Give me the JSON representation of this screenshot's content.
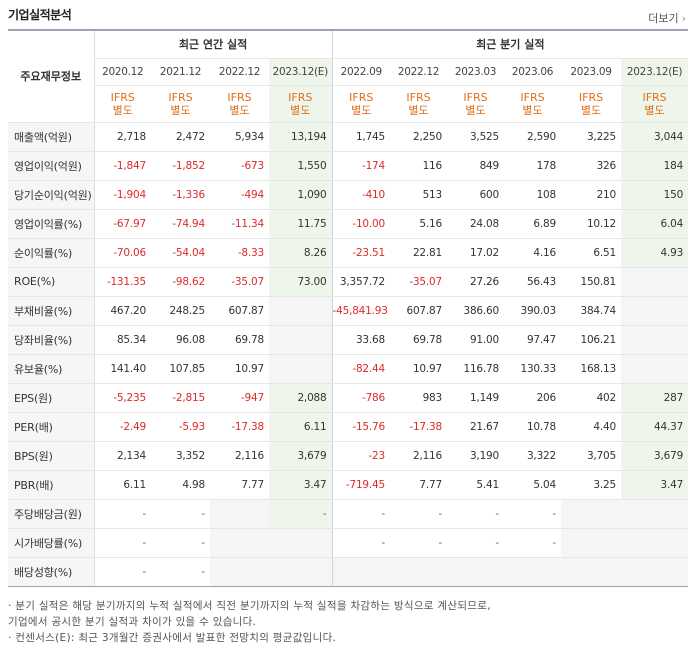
{
  "title": "기업실적분석",
  "more_label": "더보기",
  "header": {
    "label_col": "주요재무정보",
    "annual_group": "최근 연간 실적",
    "quarter_group": "최근 분기 실적",
    "annual_periods": [
      "2020.12",
      "2021.12",
      "2022.12",
      "2023.12(E)"
    ],
    "quarter_periods": [
      "2022.09",
      "2022.12",
      "2023.03",
      "2023.06",
      "2023.09",
      "2023.12(E)"
    ],
    "ifrs_line1": "IFRS",
    "ifrs_line2": "별도"
  },
  "rows": [
    {
      "label": "매출액(억원)",
      "values": [
        "2,718",
        "2,472",
        "5,934",
        "13,194",
        "1,745",
        "2,250",
        "3,525",
        "2,590",
        "3,225",
        "3,044"
      ]
    },
    {
      "label": "영업이익(억원)",
      "values": [
        "-1,847",
        "-1,852",
        "-673",
        "1,550",
        "-174",
        "116",
        "849",
        "178",
        "326",
        "184"
      ]
    },
    {
      "label": "당기순이익(억원)",
      "values": [
        "-1,904",
        "-1,336",
        "-494",
        "1,090",
        "-410",
        "513",
        "600",
        "108",
        "210",
        "150"
      ]
    },
    {
      "label": "영업이익률(%)",
      "values": [
        "-67.97",
        "-74.94",
        "-11.34",
        "11.75",
        "-10.00",
        "5.16",
        "24.08",
        "6.89",
        "10.12",
        "6.04"
      ]
    },
    {
      "label": "순이익률(%)",
      "values": [
        "-70.06",
        "-54.04",
        "-8.33",
        "8.26",
        "-23.51",
        "22.81",
        "17.02",
        "4.16",
        "6.51",
        "4.93"
      ]
    },
    {
      "label": "ROE(%)",
      "values": [
        "-131.35",
        "-98.62",
        "-35.07",
        "73.00",
        "3,357.72",
        "-35.07",
        "27.26",
        "56.43",
        "150.81",
        ""
      ]
    },
    {
      "label": "부채비율(%)",
      "values": [
        "467.20",
        "248.25",
        "607.87",
        "",
        "-45,841.93",
        "607.87",
        "386.60",
        "390.03",
        "384.74",
        ""
      ]
    },
    {
      "label": "당좌비율(%)",
      "values": [
        "85.34",
        "96.08",
        "69.78",
        "",
        "33.68",
        "69.78",
        "91.00",
        "97.47",
        "106.21",
        ""
      ]
    },
    {
      "label": "유보율(%)",
      "values": [
        "141.40",
        "107.85",
        "10.97",
        "",
        "-82.44",
        "10.97",
        "116.78",
        "130.33",
        "168.13",
        ""
      ]
    },
    {
      "label": "EPS(원)",
      "values": [
        "-5,235",
        "-2,815",
        "-947",
        "2,088",
        "-786",
        "983",
        "1,149",
        "206",
        "402",
        "287"
      ]
    },
    {
      "label": "PER(배)",
      "values": [
        "-2.49",
        "-5.93",
        "-17.38",
        "6.11",
        "-15.76",
        "-17.38",
        "21.67",
        "10.78",
        "4.40",
        "44.37"
      ]
    },
    {
      "label": "BPS(원)",
      "values": [
        "2,134",
        "3,352",
        "2,116",
        "3,679",
        "-23",
        "2,116",
        "3,190",
        "3,322",
        "3,705",
        "3,679"
      ]
    },
    {
      "label": "PBR(배)",
      "values": [
        "6.11",
        "4.98",
        "7.77",
        "3.47",
        "-719.45",
        "7.77",
        "5.41",
        "5.04",
        "3.25",
        "3.47"
      ]
    },
    {
      "label": "주당배당금(원)",
      "values": [
        "-",
        "-",
        "",
        "-",
        "-",
        "-",
        "-",
        "-",
        "",
        ""
      ]
    },
    {
      "label": "시가배당률(%)",
      "values": [
        "-",
        "-",
        "",
        "",
        "-",
        "-",
        "-",
        "-",
        "",
        ""
      ]
    },
    {
      "label": "배당성향(%)",
      "values": [
        "-",
        "-",
        "",
        "",
        "",
        "",
        "",
        "",
        "",
        ""
      ]
    }
  ],
  "notes": [
    "· 분기 실적은 해당 분기까지의 누적 실적에서 직전 분기까지의 누적 실적을 차감하는 방식으로 계산되므로,",
    "  기업에서 공시한 분기 실적과 차이가 있을 수 있습니다.",
    "· 컨센서스(E): 최근 3개월간 증권사에서 발표한 전망치의 평균값입니다."
  ],
  "colors": {
    "negative": "#dd2a2a",
    "ifrs": "#e06e1c",
    "estimate_bg": "#eef6ec",
    "label_bg": "#f6f6f6"
  }
}
